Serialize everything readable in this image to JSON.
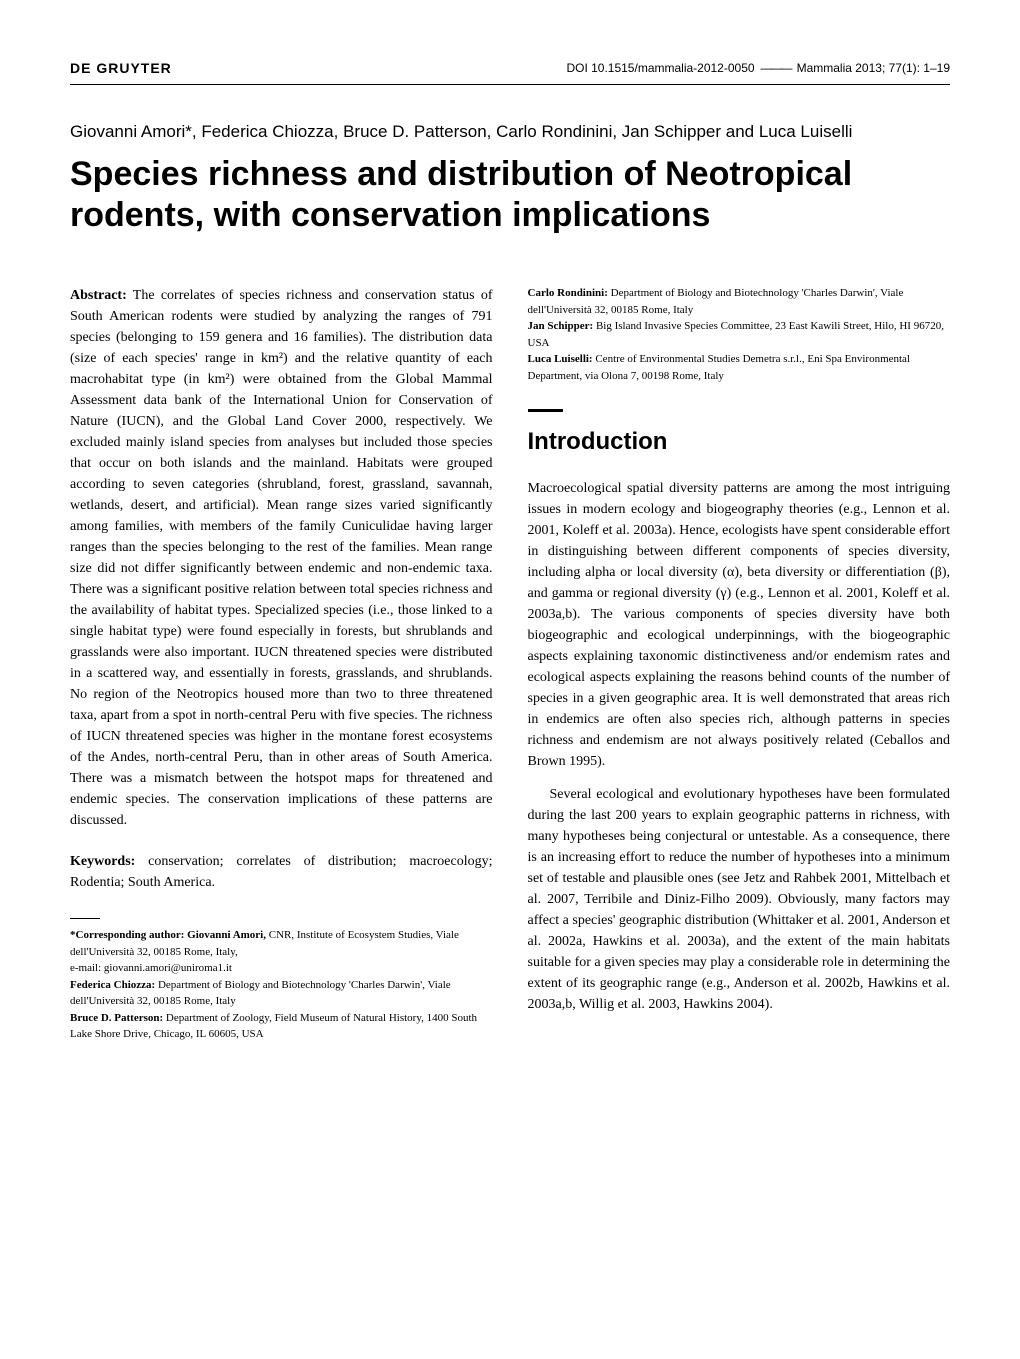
{
  "header": {
    "publisher": "DE GRUYTER",
    "doi": "DOI 10.1515/mammalia-2012-0050",
    "journal": "Mammalia 2013; 77(1): 1–19"
  },
  "authors_line": "Giovanni Amori*, Federica Chiozza, Bruce D. Patterson, Carlo Rondinini, Jan Schipper and Luca Luiselli",
  "title": "Species richness and distribution of Neotropical rodents, with conservation implications",
  "abstract": {
    "label": "Abstract:",
    "text": "The correlates of species richness and conservation status of South American rodents were studied by analyzing the ranges of 791 species (belonging to 159 genera and 16 families). The distribution data (size of each species' range in km²) and the relative quantity of each macrohabitat type (in km²) were obtained from the Global Mammal Assessment data bank of the International Union for Conservation of Nature (IUCN), and the Global Land Cover 2000, respectively. We excluded mainly island species from analyses but included those species that occur on both islands and the mainland. Habitats were grouped according to seven categories (shrubland, forest, grassland, savannah, wetlands, desert, and artificial). Mean range sizes varied significantly among families, with members of the family Cuniculidae having larger ranges than the species belonging to the rest of the families. Mean range size did not differ significantly between endemic and non-endemic taxa. There was a significant positive relation between total species richness and the availability of habitat types. Specialized species (i.e., those linked to a single habitat type) were found especially in forests, but shrublands and grasslands were also important. IUCN threatened species were distributed in a scattered way, and essentially in forests, grasslands, and shrublands. No region of the Neotropics housed more than two to three threatened taxa, apart from a spot in north-central Peru with five species. The richness of IUCN threatened species was higher in the montane forest ecosystems of the Andes, north-central Peru, than in other areas of South America. There was a mismatch between the hotspot maps for threatened and endemic species. The conservation implications of these patterns are discussed."
  },
  "keywords": {
    "label": "Keywords:",
    "text": "conservation; correlates of distribution; macroecology; Rodentia; South America."
  },
  "corresponding": {
    "label": "*Corresponding author: Giovanni Amori,",
    "affiliation": "CNR, Institute of Ecosystem Studies, Viale dell'Università 32, 00185 Rome, Italy,",
    "email": "e-mail: giovanni.amori@uniroma1.it"
  },
  "left_affiliations": [
    {
      "name": "Federica Chiozza:",
      "text": "Department of Biology and Biotechnology 'Charles Darwin', Viale dell'Università 32, 00185 Rome, Italy"
    },
    {
      "name": "Bruce D. Patterson:",
      "text": "Department of Zoology, Field Museum of Natural History, 1400 South Lake Shore Drive, Chicago, IL 60605, USA"
    }
  ],
  "right_affiliations": [
    {
      "name": "Carlo Rondinini:",
      "text": "Department of Biology and Biotechnology 'Charles Darwin', Viale dell'Università 32, 00185 Rome, Italy"
    },
    {
      "name": "Jan Schipper:",
      "text": "Big Island Invasive Species Committee, 23 East Kawili Street, Hilo, HI 96720, USA"
    },
    {
      "name": "Luca Luiselli:",
      "text": "Centre of Environmental Studies Demetra s.r.l., Eni Spa Environmental Department, via Olona 7, 00198 Rome, Italy"
    }
  ],
  "section_heading": "Introduction",
  "intro_paragraphs": [
    "Macroecological spatial diversity patterns are among the most intriguing issues in modern ecology and biogeography theories (e.g., Lennon et al. 2001, Koleff et al. 2003a). Hence, ecologists have spent considerable effort in distinguishing between different components of species diversity, including alpha or local diversity (α), beta diversity or differentiation (β), and gamma or regional diversity (γ) (e.g., Lennon et al. 2001, Koleff et al. 2003a,b). The various components of species diversity have both biogeographic and ecological underpinnings, with the biogeographic aspects explaining taxonomic distinctiveness and/or endemism rates and ecological aspects explaining the reasons behind counts of the number of species in a given geographic area. It is well demonstrated that areas rich in endemics are often also species rich, although patterns in species richness and endemism are not always positively related (Ceballos and Brown 1995).",
    "Several ecological and evolutionary hypotheses have been formulated during the last 200 years to explain geographic patterns in richness, with many hypotheses being conjectural or untestable. As a consequence, there is an increasing effort to reduce the number of hypotheses into a minimum set of testable and plausible ones (see Jetz and Rahbek 2001, Mittelbach et al. 2007, Terribile and Diniz-Filho 2009). Obviously, many factors may affect a species' geographic distribution (Whittaker et al. 2001, Anderson et al. 2002a, Hawkins et al. 2003a), and the extent of the main habitats suitable for a given species may play a considerable role in determining the extent of its geographic range (e.g., Anderson et al. 2002b, Hawkins et al. 2003a,b, Willig et al. 2003, Hawkins 2004)."
  ]
}
